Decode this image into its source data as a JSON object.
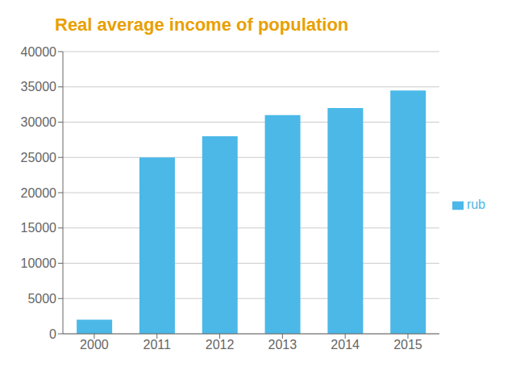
{
  "chart_data": {
    "type": "bar",
    "title": "Real average income of population",
    "categories": [
      "2000",
      "2011",
      "2012",
      "2013",
      "2014",
      "2015"
    ],
    "series": [
      {
        "name": "rub",
        "color": "#4BB8E8",
        "values": [
          2000,
          25000,
          28000,
          31000,
          32000,
          34500
        ]
      }
    ],
    "ylim": [
      0,
      40000
    ],
    "yticks": [
      0,
      5000,
      10000,
      15000,
      20000,
      25000,
      30000,
      35000,
      40000
    ],
    "grid": true,
    "legend": "right"
  }
}
